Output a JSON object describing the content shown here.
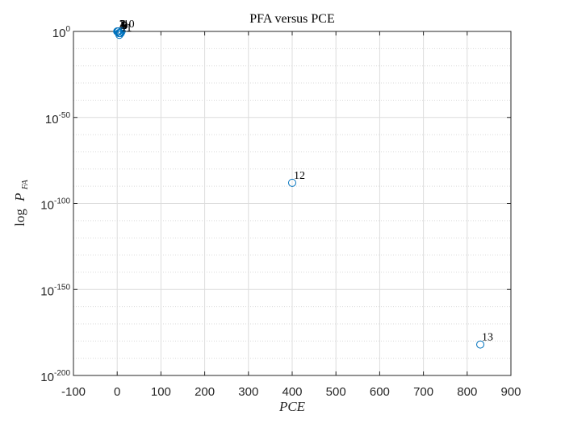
{
  "chart_data": {
    "type": "scatter",
    "title": "PFA versus PCE",
    "xlabel": "PCE",
    "ylabel_main": "log",
    "ylabel_var": "P",
    "ylabel_sub": "FA",
    "xlim": [
      -100,
      900
    ],
    "ylim_exp": [
      -200,
      0
    ],
    "y_scale": "log",
    "grid": true,
    "minor_grid": true,
    "x_ticks": [
      "-100",
      "0",
      "100",
      "200",
      "300",
      "400",
      "500",
      "600",
      "700",
      "800",
      "900"
    ],
    "y_ticks": [
      {
        "base": "10",
        "exp": "0"
      },
      {
        "base": "10",
        "exp": "-50"
      },
      {
        "base": "10",
        "exp": "-100"
      },
      {
        "base": "10",
        "exp": "-150"
      },
      {
        "base": "10",
        "exp": "-200"
      }
    ],
    "marker_color": "#0072BD",
    "points": [
      {
        "label": "1",
        "x": 0,
        "y_exp": 0
      },
      {
        "label": "2",
        "x": 1,
        "y_exp": 0
      },
      {
        "label": "3",
        "x": 2,
        "y_exp": 0
      },
      {
        "label": "4",
        "x": 3,
        "y_exp": 0
      },
      {
        "label": "5",
        "x": 4,
        "y_exp": -1
      },
      {
        "label": "6",
        "x": 5,
        "y_exp": -1
      },
      {
        "label": "7",
        "x": 6,
        "y_exp": -1
      },
      {
        "label": "8",
        "x": 7,
        "y_exp": -1
      },
      {
        "label": "9",
        "x": 8,
        "y_exp": -1
      },
      {
        "label": "10",
        "x": 10,
        "y_exp": 0
      },
      {
        "label": "11",
        "x": 5,
        "y_exp": -2
      },
      {
        "label": "12",
        "x": 400,
        "y_exp": -88
      },
      {
        "label": "13",
        "x": 830,
        "y_exp": -182
      }
    ]
  }
}
